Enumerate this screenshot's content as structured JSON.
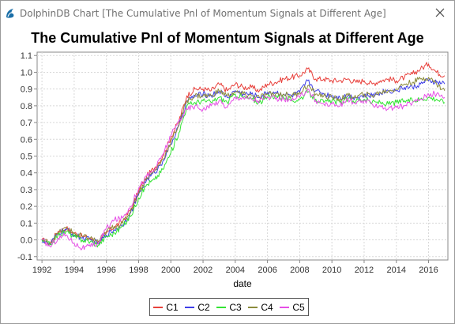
{
  "window": {
    "title": "DolphinDB Chart [The Cumulative Pnl of Momentum Signals at Different Age]",
    "app_icon": "dolphindb-logo-icon",
    "close_icon": "close-icon"
  },
  "chart_data": {
    "type": "line",
    "title": "The Cumulative Pnl of Momentum Signals at Different Age",
    "xlabel": "date",
    "ylabel": "",
    "xlim": [
      1991.7,
      2017.2
    ],
    "ylim": [
      -0.12,
      1.12
    ],
    "xticks": [
      1992,
      1994,
      1996,
      1998,
      2000,
      2002,
      2004,
      2006,
      2008,
      2010,
      2012,
      2014,
      2016
    ],
    "yticks": [
      -0.1,
      0.0,
      0.1,
      0.2,
      0.3,
      0.4,
      0.5,
      0.6,
      0.7,
      0.8,
      0.9,
      1.0,
      1.1
    ],
    "grid": true,
    "legend_position": "bottom",
    "x": [
      1992.0,
      1992.5,
      1993.0,
      1993.5,
      1994.0,
      1994.5,
      1995.0,
      1995.5,
      1996.0,
      1996.5,
      1997.0,
      1997.5,
      1998.0,
      1998.5,
      1999.0,
      1999.5,
      2000.0,
      2000.5,
      2001.0,
      2001.5,
      2002.0,
      2002.5,
      2003.0,
      2003.5,
      2004.0,
      2004.5,
      2005.0,
      2005.5,
      2006.0,
      2006.5,
      2007.0,
      2007.5,
      2008.0,
      2008.5,
      2009.0,
      2009.5,
      2010.0,
      2010.5,
      2011.0,
      2011.5,
      2012.0,
      2012.5,
      2013.0,
      2013.5,
      2014.0,
      2014.5,
      2015.0,
      2015.5,
      2016.0,
      2016.5,
      2017.0
    ],
    "series": [
      {
        "name": "C1",
        "color": "#e8413c",
        "values": [
          0.0,
          -0.02,
          0.05,
          0.07,
          0.04,
          0.02,
          0.01,
          -0.02,
          0.04,
          0.08,
          0.11,
          0.18,
          0.29,
          0.38,
          0.43,
          0.5,
          0.61,
          0.71,
          0.86,
          0.9,
          0.9,
          0.89,
          0.93,
          0.89,
          0.93,
          0.91,
          0.91,
          0.89,
          0.93,
          0.94,
          0.96,
          0.97,
          0.98,
          1.02,
          0.96,
          0.96,
          0.95,
          0.95,
          0.96,
          0.94,
          0.95,
          0.93,
          0.95,
          0.96,
          0.95,
          0.97,
          0.99,
          1.02,
          1.05,
          1.0,
          0.98
        ]
      },
      {
        "name": "C2",
        "color": "#3f3fe8",
        "values": [
          0.0,
          -0.03,
          0.04,
          0.06,
          0.03,
          0.01,
          0.0,
          -0.02,
          0.03,
          0.06,
          0.09,
          0.16,
          0.27,
          0.36,
          0.4,
          0.47,
          0.57,
          0.68,
          0.83,
          0.86,
          0.87,
          0.86,
          0.89,
          0.85,
          0.89,
          0.87,
          0.87,
          0.85,
          0.88,
          0.88,
          0.87,
          0.86,
          0.88,
          0.95,
          0.89,
          0.87,
          0.86,
          0.85,
          0.86,
          0.85,
          0.86,
          0.86,
          0.88,
          0.89,
          0.89,
          0.91,
          0.91,
          0.93,
          0.95,
          0.94,
          0.93
        ]
      },
      {
        "name": "C3",
        "color": "#33e433",
        "values": [
          0.0,
          -0.03,
          0.03,
          0.05,
          0.02,
          0.0,
          -0.01,
          -0.03,
          0.02,
          0.04,
          0.08,
          0.14,
          0.25,
          0.33,
          0.36,
          0.42,
          0.52,
          0.64,
          0.8,
          0.82,
          0.83,
          0.82,
          0.85,
          0.82,
          0.87,
          0.85,
          0.84,
          0.82,
          0.85,
          0.86,
          0.85,
          0.83,
          0.84,
          0.88,
          0.84,
          0.82,
          0.83,
          0.82,
          0.84,
          0.83,
          0.84,
          0.82,
          0.82,
          0.81,
          0.82,
          0.83,
          0.83,
          0.84,
          0.85,
          0.84,
          0.82
        ]
      },
      {
        "name": "C4",
        "color": "#8c8c3c",
        "values": [
          0.0,
          -0.02,
          0.04,
          0.07,
          0.04,
          0.02,
          0.01,
          -0.01,
          0.05,
          0.08,
          0.1,
          0.17,
          0.28,
          0.37,
          0.41,
          0.48,
          0.58,
          0.69,
          0.83,
          0.86,
          0.86,
          0.86,
          0.89,
          0.86,
          0.88,
          0.87,
          0.86,
          0.85,
          0.87,
          0.87,
          0.87,
          0.86,
          0.88,
          0.92,
          0.87,
          0.86,
          0.85,
          0.84,
          0.86,
          0.85,
          0.87,
          0.86,
          0.88,
          0.89,
          0.9,
          0.93,
          0.94,
          0.96,
          0.97,
          0.93,
          0.89
        ]
      },
      {
        "name": "C5",
        "color": "#e64fe6",
        "values": [
          0.0,
          -0.04,
          0.01,
          0.03,
          -0.02,
          -0.05,
          -0.04,
          -0.02,
          0.07,
          0.12,
          0.13,
          0.2,
          0.31,
          0.38,
          0.42,
          0.51,
          0.62,
          0.71,
          0.78,
          0.8,
          0.78,
          0.8,
          0.83,
          0.79,
          0.85,
          0.85,
          0.84,
          0.83,
          0.85,
          0.84,
          0.84,
          0.83,
          0.85,
          0.9,
          0.83,
          0.81,
          0.81,
          0.8,
          0.84,
          0.81,
          0.83,
          0.81,
          0.8,
          0.78,
          0.79,
          0.8,
          0.82,
          0.84,
          0.87,
          0.87,
          0.85
        ]
      }
    ]
  }
}
